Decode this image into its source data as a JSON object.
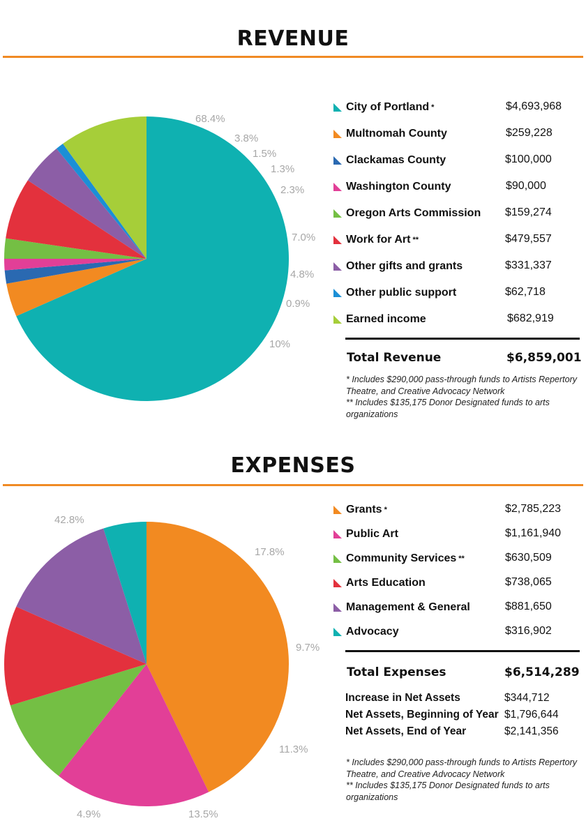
{
  "revenue": {
    "title": "REVENUE",
    "total_label": "Total Revenue",
    "total_value": "$6,859,001",
    "notes": [
      "* Includes $290,000 pass-through funds to Artists Repertory Theatre, and Creative Advocacy Network",
      "** Includes $135,175 Donor Designated funds to arts organizations"
    ]
  },
  "expenses": {
    "title": "EXPENSES",
    "total_label": "Total Expenses",
    "total_value": "$6,514,289",
    "net": [
      {
        "label": "Increase in Net Assets",
        "value": "$344,712"
      },
      {
        "label": "Net Assets, Beginning of Year",
        "value": "$1,796,644"
      },
      {
        "label": "Net Assets, End of Year",
        "value": "$2,141,356"
      }
    ],
    "notes": [
      "* Includes $290,000 pass-through funds to Artists Repertory Theatre, and Creative Advocacy Network",
      "** Includes $135,175 Donor Designated funds to arts organizations"
    ]
  },
  "chart_data": [
    {
      "type": "pie",
      "title": "REVENUE",
      "categories": [
        "City of Portland",
        "Multnomah County",
        "Clackamas County",
        "Washington County",
        "Oregon Arts Commission",
        "Work for Art",
        "Other gifts and grants",
        "Other public support",
        "Earned income"
      ],
      "markers": [
        "*",
        "",
        "",
        "",
        "",
        "**",
        "",
        "",
        ""
      ],
      "amounts": [
        "$4,693,968",
        "$259,228",
        "$100,000",
        "$90,000",
        "$159,274",
        "$479,557",
        "$331,337",
        "$62,718",
        "$682,919"
      ],
      "values": [
        68.4,
        3.8,
        1.5,
        1.3,
        2.3,
        7.0,
        4.8,
        0.9,
        10
      ],
      "value_labels": [
        "68.4%",
        "3.8%",
        "1.5%",
        "1.3%",
        "2.3%",
        "7.0%",
        "4.8%",
        "0.9%",
        "10%"
      ],
      "colors": [
        "#0fb1b1",
        "#f28a21",
        "#2a69b1",
        "#e23f97",
        "#74bf44",
        "#e3313d",
        "#8c5ea6",
        "#1b8fd6",
        "#a6ce39"
      ],
      "legend_placement": "right"
    },
    {
      "type": "pie",
      "title": "EXPENSES",
      "categories": [
        "Grants",
        "Public Art",
        "Community Services",
        "Arts Education",
        "Management & General",
        "Advocacy"
      ],
      "markers": [
        "*",
        "",
        "**",
        "",
        "",
        ""
      ],
      "amounts": [
        "$2,785,223",
        "$1,161,940",
        "$630,509",
        "$738,065",
        "$881,650",
        "$316,902"
      ],
      "values": [
        42.8,
        17.8,
        9.7,
        11.3,
        13.5,
        4.9
      ],
      "value_labels": [
        "42.8%",
        "17.8%",
        "9.7%",
        "11.3%",
        "13.5%",
        "4.9%"
      ],
      "colors": [
        "#f28a21",
        "#e23f97",
        "#74bf44",
        "#e3313d",
        "#8c5ea6",
        "#0fb1b1"
      ],
      "legend_placement": "right"
    }
  ]
}
